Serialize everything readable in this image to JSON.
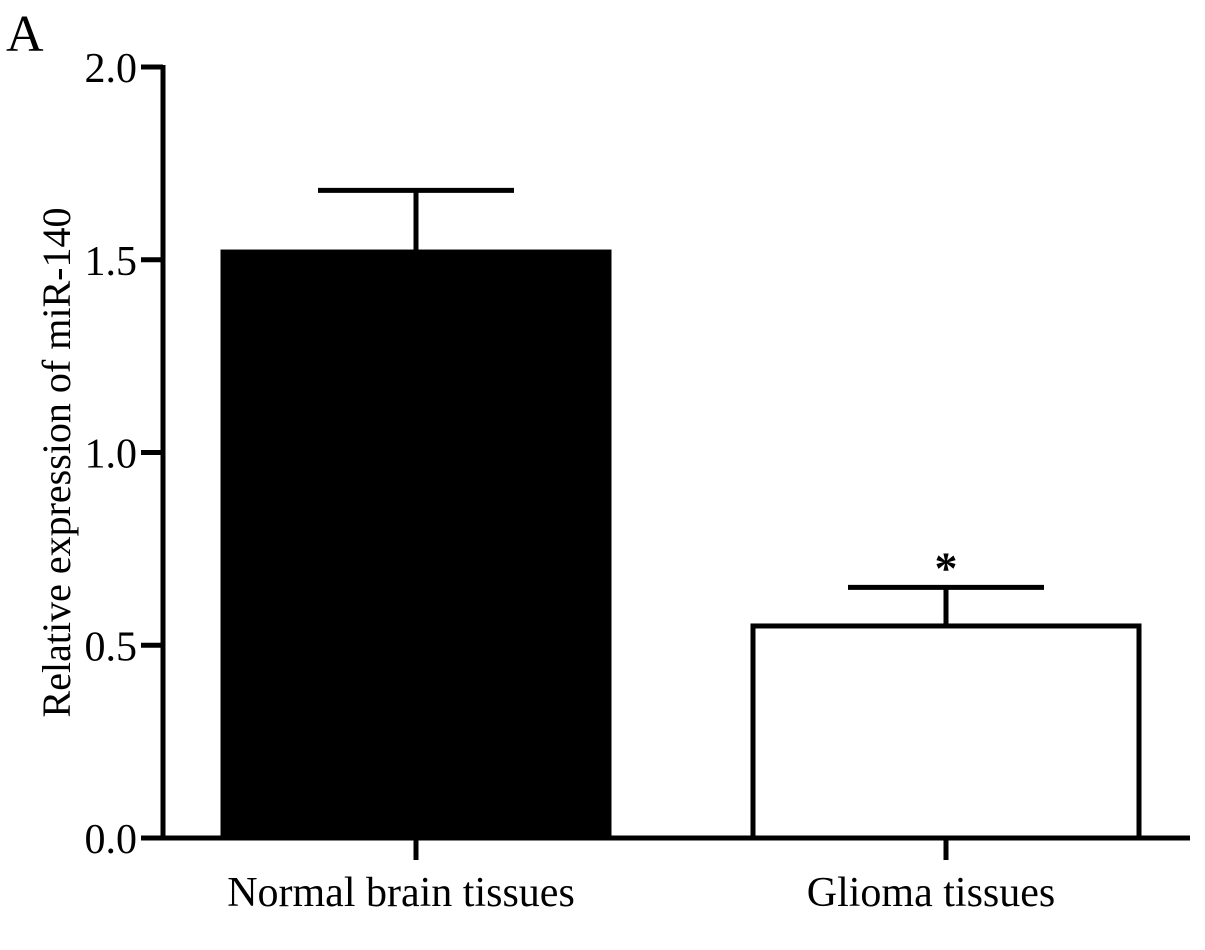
{
  "panel_label": "A",
  "chart_data": {
    "type": "bar",
    "title": "",
    "xlabel": "",
    "ylabel": "Relative expression of miR-140",
    "ylim": [
      0,
      2.0
    ],
    "yticks": [
      "0.0",
      "0.5",
      "1.0",
      "1.5",
      "2.0"
    ],
    "categories": [
      "Normal brain tissues",
      "Glioma tissues"
    ],
    "values": [
      1.52,
      0.55
    ],
    "errors": [
      0.16,
      0.1
    ],
    "annotations": [
      "",
      "*"
    ],
    "bar_colors": [
      "#000000",
      "#ffffff"
    ],
    "grid": false
  }
}
